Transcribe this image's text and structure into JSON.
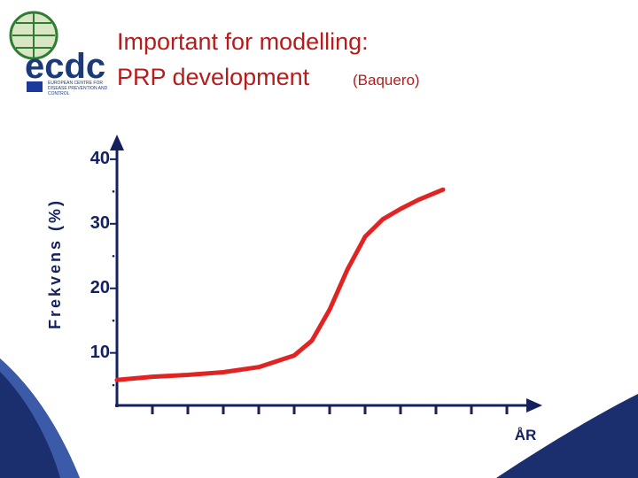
{
  "logo": {
    "mark": "ecdc",
    "caption": [
      "EUROPEAN CENTRE FOR",
      "DISEASE PREVENTION AND",
      "CONTROL"
    ]
  },
  "chart_data": {
    "type": "line",
    "title": "Important for modelling:",
    "subtitle": "PRP development",
    "source": "(Baquero)",
    "y_label": "Frekvens (%)",
    "x_label": "ÅR",
    "xlim": [
      0,
      11.8
    ],
    "xticks": [
      1,
      2,
      3,
      4,
      5,
      6,
      7,
      8,
      9,
      10,
      11
    ],
    "ylim": [
      2,
      43
    ],
    "yticks": [
      10,
      20,
      30,
      40
    ],
    "minor_yticks": [
      5,
      15,
      25,
      35
    ],
    "series": [
      {
        "color": "#e02424",
        "x": [
          0,
          1,
          2,
          3,
          4,
          5,
          5.5,
          6,
          6.5,
          7,
          7.5,
          8,
          8.5,
          9.2
        ],
        "values": [
          5.8,
          6.3,
          6.6,
          7.0,
          7.8,
          9.6,
          11.9,
          16.7,
          22.9,
          28,
          30.7,
          32.3,
          33.7,
          35.3
        ]
      }
    ]
  }
}
